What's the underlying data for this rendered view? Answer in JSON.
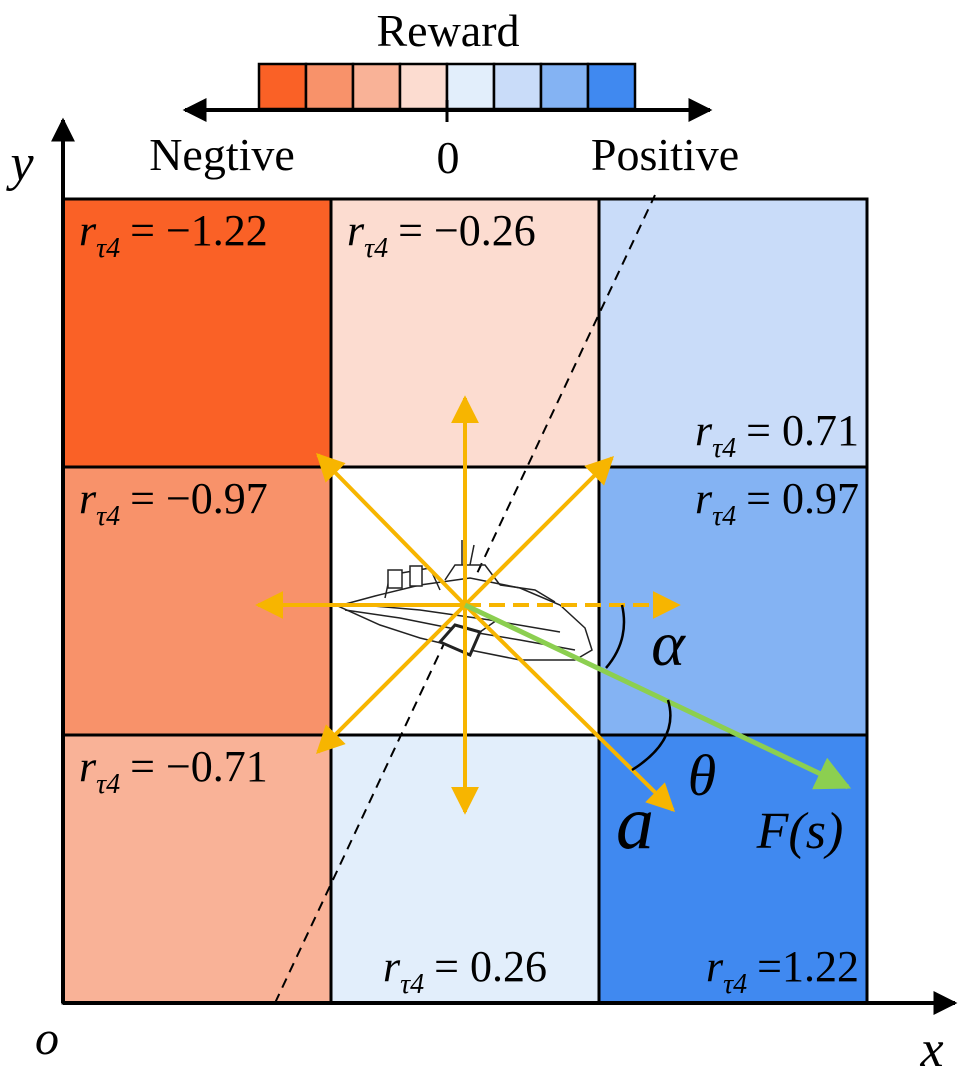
{
  "legend": {
    "title": "Reward",
    "left_label": "Negtive",
    "center_label": "0",
    "right_label": "Positive",
    "swatches": [
      "#fa6126",
      "#f8926a",
      "#f9b297",
      "#fcdcd0",
      "#e2eefb",
      "#c9dcf9",
      "#84b3f3",
      "#4089f0"
    ]
  },
  "axes": {
    "x": "x",
    "y": "y",
    "origin": "o"
  },
  "cells": [
    {
      "r": "r",
      "sub": "τ4",
      "value": "= −1.22",
      "color": "#fa6126"
    },
    {
      "r": "r",
      "sub": "τ4",
      "value": "= −0.26",
      "color": "#fcdcd0"
    },
    {
      "r": "r",
      "sub": "τ4",
      "value": "= 0.71",
      "color": "#c9dcf9"
    },
    {
      "r": "r",
      "sub": "τ4",
      "value": "= −0.97",
      "color": "#f8926a"
    },
    {
      "r": "",
      "sub": "",
      "value": "",
      "color": "#ffffff"
    },
    {
      "r": "r",
      "sub": "τ4",
      "value": "= 0.97",
      "color": "#84b3f3"
    },
    {
      "r": "r",
      "sub": "τ4",
      "value": "= −0.71",
      "color": "#f9b297"
    },
    {
      "r": "r",
      "sub": "τ4",
      "value": "= 0.26",
      "color": "#e2eefb"
    },
    {
      "r": "r",
      "sub": "τ4",
      "value": "=1.22",
      "color": "#4089f0"
    }
  ],
  "symbols": {
    "alpha": "α",
    "theta": "θ",
    "action": "a",
    "force": "F(s)"
  },
  "colors": {
    "action_arrows": "#f7b500",
    "force_arrow": "#8ccf50",
    "grid": "#000000"
  }
}
